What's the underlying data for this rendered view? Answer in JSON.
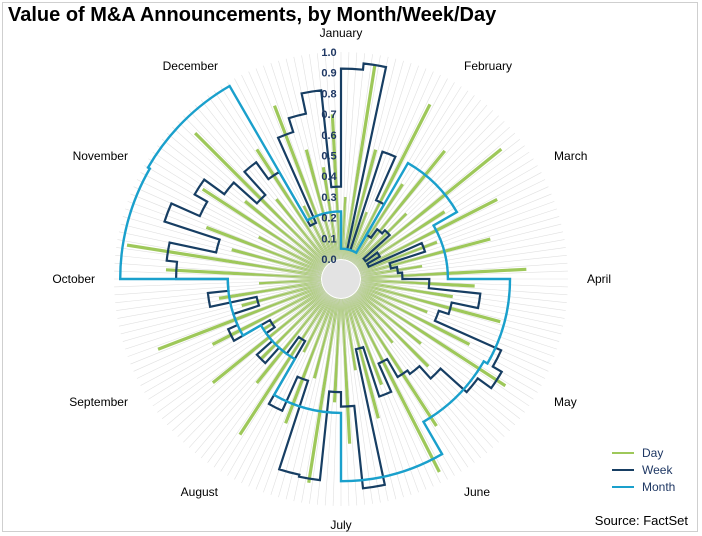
{
  "title": "Value of M&A Announcements, by Month/Week/Day",
  "source": "Source: FactSet",
  "colors": {
    "day": "#9ec85a",
    "week": "#173e63",
    "month": "#1aa0cc",
    "grid": "#d9d9d9",
    "axis_text": "#1f3864"
  },
  "chart_data": {
    "type": "radar",
    "title": "Value of M&A Announcements, by Month/Week/Day",
    "rlim": [
      0,
      1.0
    ],
    "radial_ticks": [
      "0.0",
      "0.1",
      "0.2",
      "0.3",
      "0.4",
      "0.5",
      "0.6",
      "0.7",
      "0.8",
      "0.9",
      "1.0"
    ],
    "months": [
      "January",
      "February",
      "March",
      "April",
      "May",
      "June",
      "July",
      "August",
      "September",
      "October",
      "November",
      "December"
    ],
    "legend_position": "bottom-right",
    "series": [
      {
        "name": "Day",
        "style": "radial-bars",
        "approximate": true,
        "values": [
          0.3,
          0.95,
          0.55,
          0.25,
          0.85,
          0.45,
          0.7,
          0.35,
          0.9,
          0.5,
          0.75,
          0.4,
          0.65,
          0.3,
          0.8,
          0.55,
          0.45,
          0.7,
          0.35,
          0.6,
          0.85,
          0.4,
          0.5,
          0.3,
          0.75,
          0.95,
          0.45,
          0.6,
          0.35,
          0.7,
          0.5,
          0.9,
          0.4,
          0.65,
          0.3,
          0.8,
          0.55,
          0.45,
          0.7,
          0.35,
          0.6,
          0.85,
          0.4,
          0.5,
          0.3,
          0.75,
          0.95,
          0.45,
          0.6,
          0.35,
          0.7,
          0.5,
          0.9,
          0.4,
          0.65,
          0.3,
          0.8,
          0.55,
          0.45,
          0.7
        ]
      },
      {
        "name": "Week",
        "values": [
          0.92,
          0.95,
          0.05,
          0.55,
          0.32,
          0.15,
          0.2,
          0.22,
          0.05,
          0.12,
          0.05,
          0.33,
          0.15,
          0.18,
          0.2,
          0.33,
          0.58,
          0.45,
          0.4,
          0.75,
          0.8,
          0.72,
          0.55,
          0.47,
          0.45,
          0.35,
          0.5,
          0.25,
          0.92,
          0.52,
          0.45,
          0.88,
          0.87,
          0.42,
          0.6,
          0.25,
          0.35,
          0.45,
          0.35,
          0.3,
          0.5,
          0.45,
          0.32,
          0.55,
          0.45,
          0.7,
          0.75,
          0.52,
          0.8,
          0.65,
          0.72,
          0.6,
          0.45,
          0.6,
          0.5,
          0.2,
          0.65,
          0.72,
          0.82,
          0.35
        ]
      },
      {
        "name": "Month",
        "values": [
          0.05,
          0.55,
          0.42,
          0.72,
          0.7,
          0.88,
          0.55,
          0.35,
          0.45,
          0.97,
          0.98,
          0.23
        ]
      }
    ]
  }
}
